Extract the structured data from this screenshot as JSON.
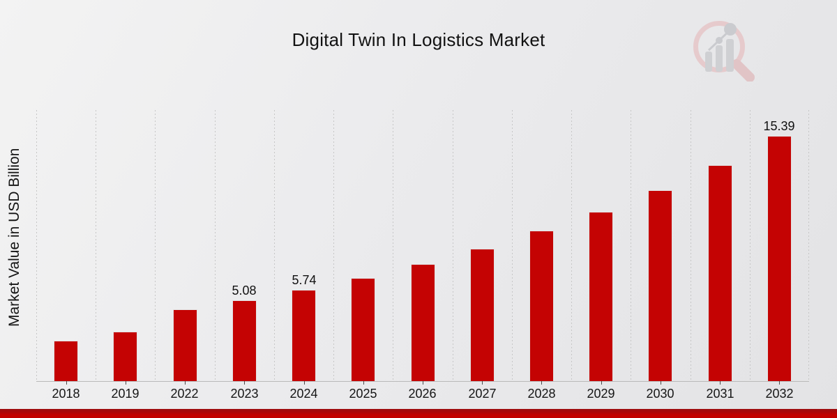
{
  "header": {
    "title": "Digital Twin In Logistics Market"
  },
  "watermark": {
    "name": "market-research-future-logo",
    "ring_color": "#e6c6c8",
    "bar_color": "#cbccd0",
    "handle_color": "#e0bec1"
  },
  "chart_data": {
    "type": "bar",
    "title": "Digital Twin In Logistics Market",
    "xlabel": "",
    "ylabel": "Market Value in USD Billion",
    "categories": [
      "2018",
      "2019",
      "2022",
      "2023",
      "2024",
      "2025",
      "2026",
      "2027",
      "2028",
      "2029",
      "2030",
      "2031",
      "2032"
    ],
    "values": [
      2.55,
      3.12,
      4.52,
      5.08,
      5.74,
      6.45,
      7.35,
      8.32,
      9.42,
      10.62,
      11.99,
      13.55,
      15.39
    ],
    "data_labels": [
      "",
      "",
      "",
      "5.08",
      "5.74",
      "",
      "",
      "",
      "",
      "",
      "",
      "",
      "15.39"
    ],
    "bar_color": "#C40303",
    "bar_edge_color": "#e3e3e3",
    "ylim": [
      0,
      17
    ],
    "grid": "vertical-dashed",
    "gridline_color": "#c6c6c6",
    "legend": "none",
    "unit": "USD Billion"
  },
  "footer": {
    "stripe_color": "#C40200"
  }
}
